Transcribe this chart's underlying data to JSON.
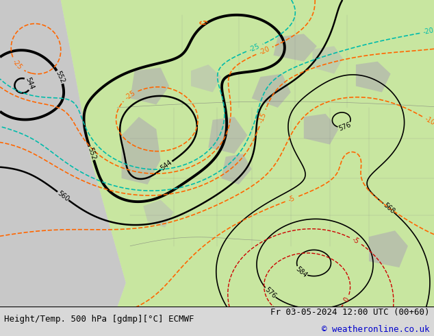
{
  "title_left": "Height/Temp. 500 hPa [gdmp][°C] ECMWF",
  "title_right": "Fr 03-05-2024 12:00 UTC (00+60)",
  "copyright": "© weatheronline.co.uk",
  "bg_color": "#d8d8d8",
  "land_green": "#c8e6a0",
  "land_gray": "#b8b8b8",
  "bottom_bar_color": "#ffffff",
  "title_fontsize": 9,
  "copyright_color": "#0000cc",
  "height_color": "#000000",
  "temp_orange": "#ff6600",
  "temp_teal": "#00bbaa",
  "temp_blue": "#4499ff",
  "temp_green": "#99cc00",
  "temp_red": "#cc0000"
}
